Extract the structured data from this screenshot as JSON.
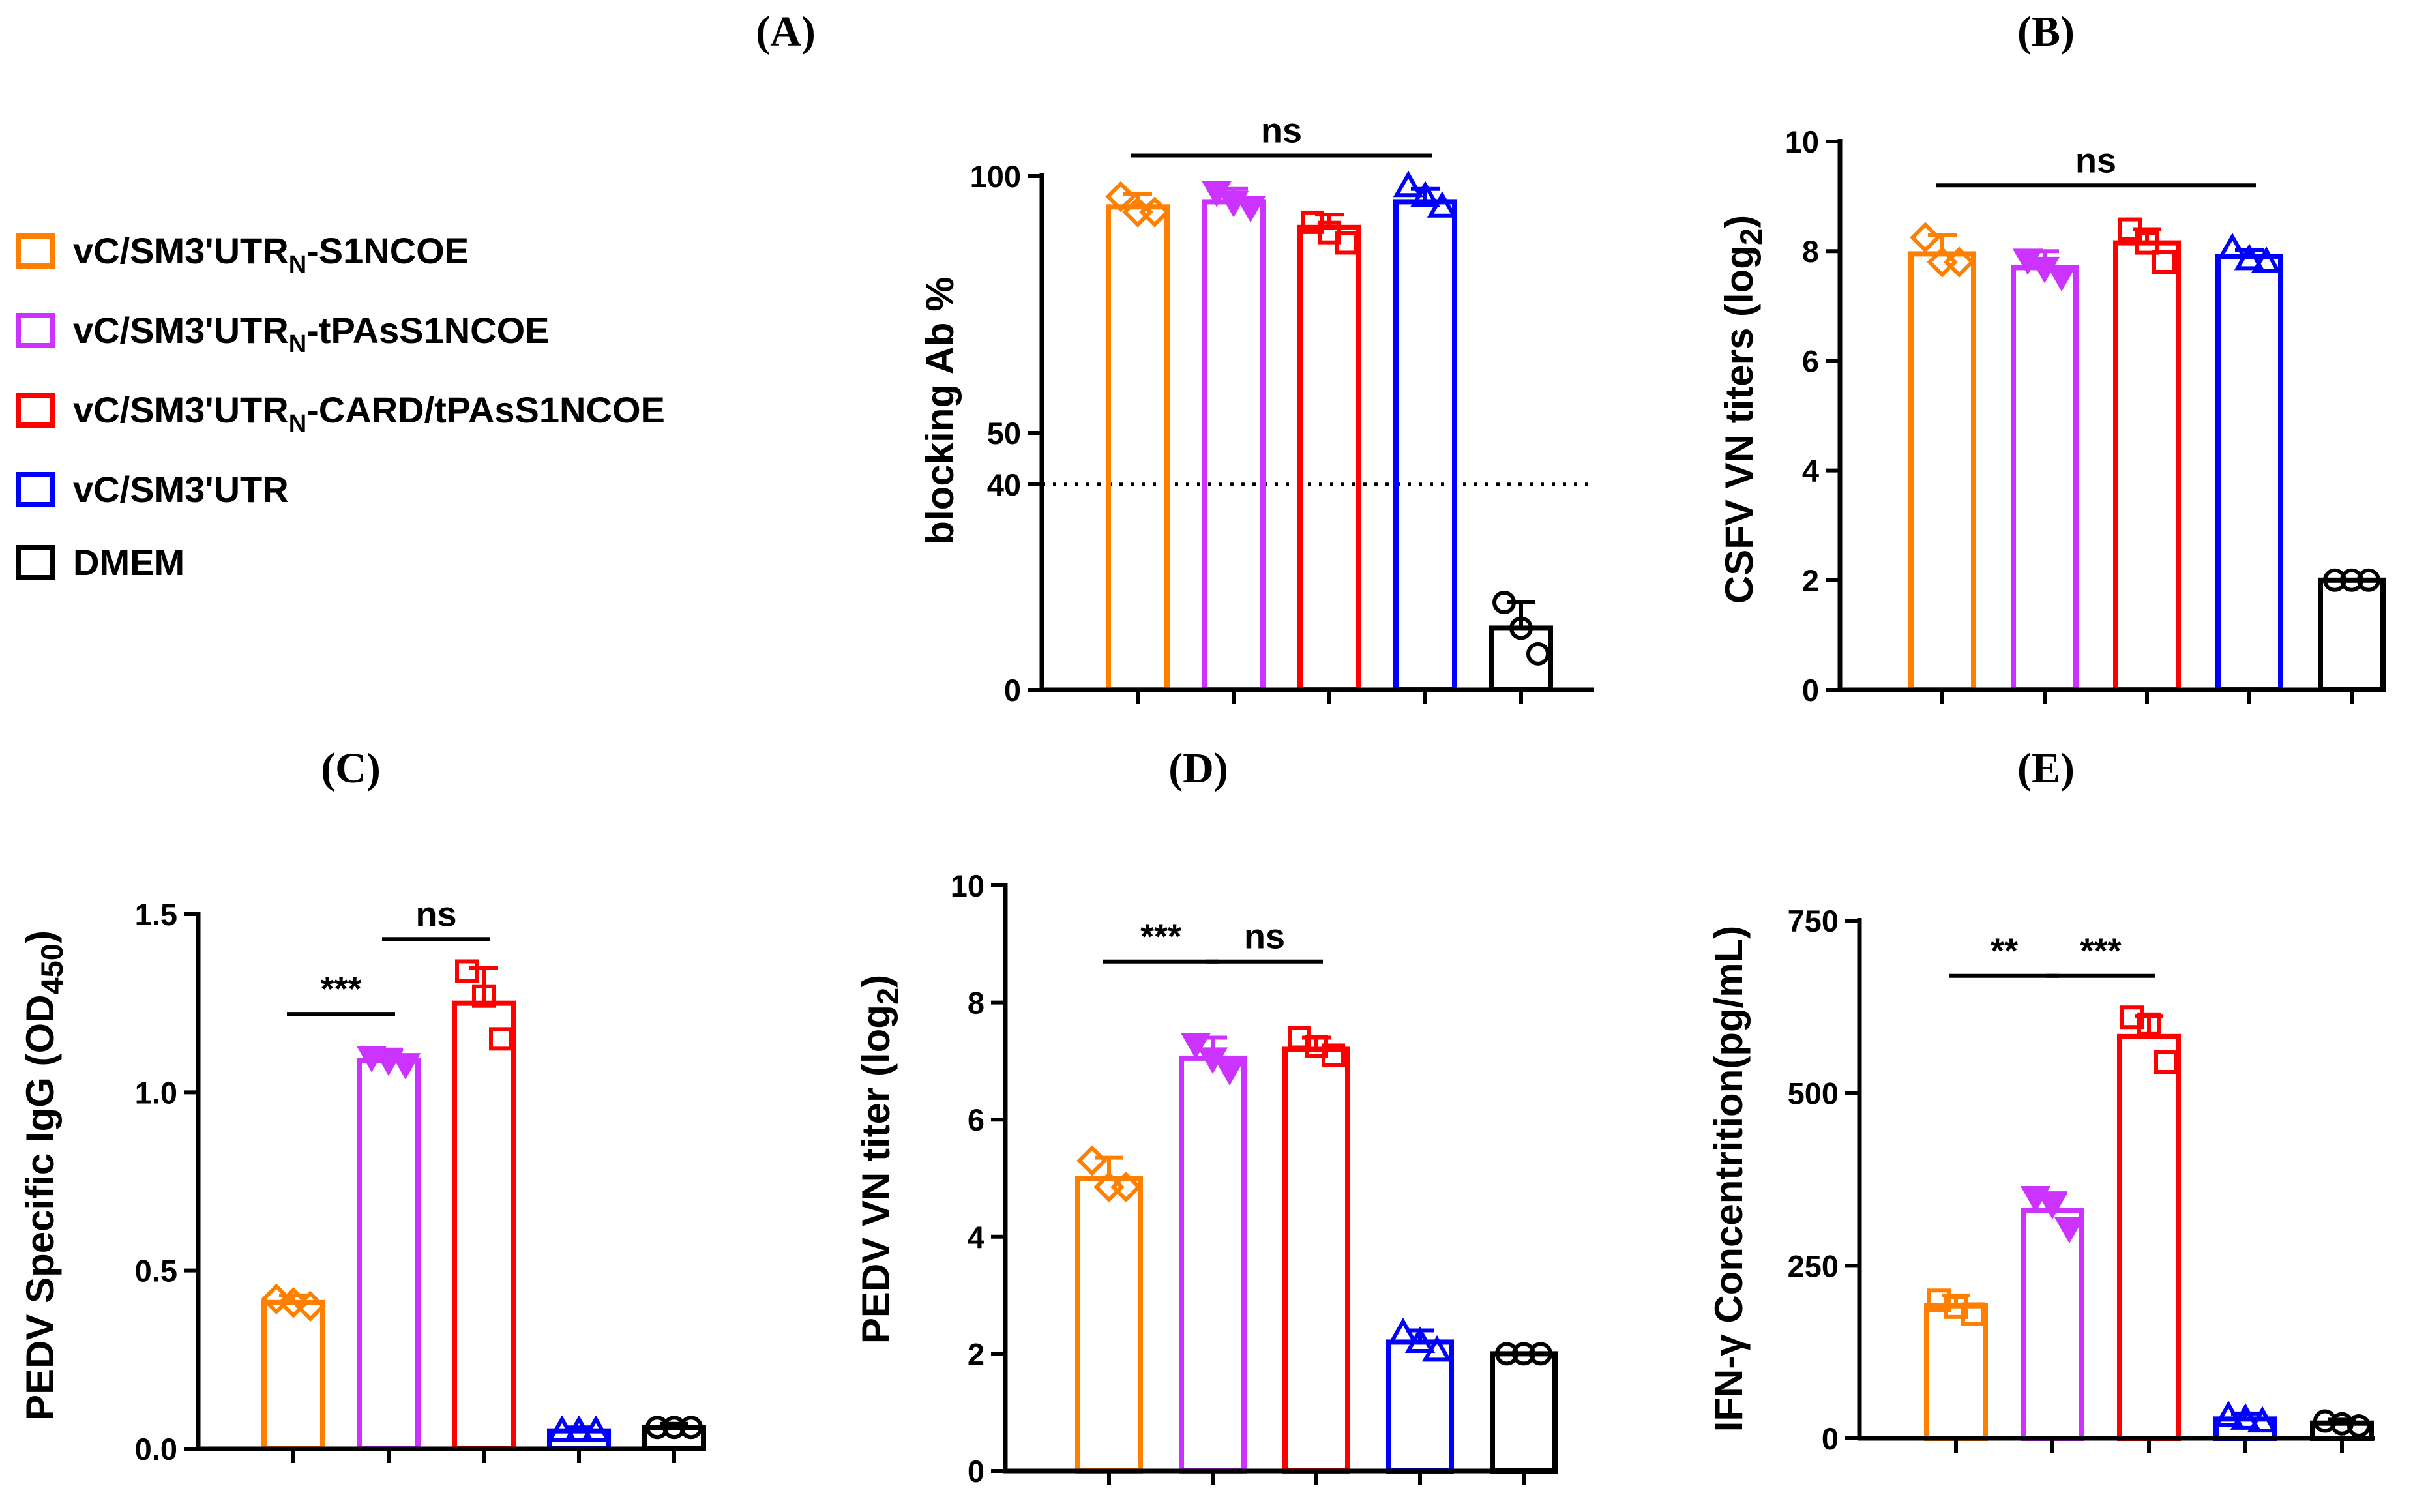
{
  "figure": {
    "legend": [
      {
        "main": "vC/SM3'UTR",
        "sub": "N",
        "rest": "-S1NCOE",
        "color": "#ff8000"
      },
      {
        "main": "vC/SM3'UTR",
        "sub": "N",
        "rest": "-tPAsS1NCOE",
        "color": "#cc33ff"
      },
      {
        "main": "vC/SM3'UTR",
        "sub": "N",
        "rest": "-CARD/tPAsS1NCOE",
        "color": "#ff0000"
      },
      {
        "main": "vC/SM3'UTR",
        "sub": "",
        "rest": "",
        "color": "#0000ff"
      },
      {
        "main": "DMEM",
        "sub": "",
        "rest": "",
        "color": "#000000"
      }
    ]
  },
  "chart_data": [
    {
      "panel": "(A)",
      "type": "bar",
      "categories": [
        "vC/SM3'UTRN-S1NCOE",
        "vC/SM3'UTRN-tPAsS1NCOE",
        "vC/SM3'UTRN-CARD/tPAsS1NCOE",
        "vC/SM3'UTR",
        "DMEM"
      ],
      "values": [
        94,
        95,
        90,
        95,
        12
      ],
      "errors": [
        2.5,
        2.5,
        2.5,
        2.5,
        5
      ],
      "points": [
        [
          96,
          93,
          93
        ],
        [
          97,
          95,
          94
        ],
        [
          91,
          89,
          87
        ],
        [
          98,
          96,
          94
        ],
        [
          17,
          12,
          7
        ]
      ],
      "markers": [
        "diamond",
        "tri-down",
        "square",
        "tri-up",
        "circle"
      ],
      "ylabel_main": "blocking Ab %",
      "ylabel_sub": "",
      "ylabel_end": "",
      "ylim": [
        0,
        100
      ],
      "yticks": [
        0,
        40,
        50,
        100
      ],
      "yticks_text": [
        "0",
        "40",
        "50",
        "100"
      ],
      "threshold": 40,
      "sig": [
        {
          "from": 0,
          "to": 3,
          "label": "ns",
          "y": 104
        }
      ]
    },
    {
      "panel": "(B)",
      "type": "bar",
      "categories": [
        "vC/SM3'UTRN-S1NCOE",
        "vC/SM3'UTRN-tPAsS1NCOE",
        "vC/SM3'UTRN-CARD/tPAsS1NCOE",
        "vC/SM3'UTR",
        "DMEM"
      ],
      "values": [
        7.95,
        7.7,
        8.15,
        7.9,
        2
      ],
      "errors": [
        0.35,
        0.3,
        0.25,
        0.12,
        0
      ],
      "points": [
        [
          8.25,
          7.8,
          7.8
        ],
        [
          7.85,
          7.7,
          7.55
        ],
        [
          8.4,
          8.15,
          7.8
        ],
        [
          8.05,
          7.85,
          7.8
        ],
        [
          2,
          2,
          2
        ]
      ],
      "markers": [
        "diamond",
        "tri-down",
        "square",
        "tri-up",
        "circle"
      ],
      "ylabel_main": "CSFV VN titers (log",
      "ylabel_sub": "2",
      "ylabel_end": ")",
      "ylim": [
        0,
        10
      ],
      "yticks": [
        0,
        2,
        4,
        6,
        8,
        10
      ],
      "yticks_text": [
        "0",
        "2",
        "4",
        "6",
        "8",
        "10"
      ],
      "sig": [
        {
          "from": 0,
          "to": 3,
          "label": "ns",
          "y": 9.2
        }
      ]
    },
    {
      "panel": "(C)",
      "type": "bar",
      "categories": [
        "vC/SM3'UTRN-S1NCOE",
        "vC/SM3'UTRN-tPAsS1NCOE",
        "vC/SM3'UTRN-CARD/tPAsS1NCOE",
        "vC/SM3'UTR",
        "DMEM"
      ],
      "values": [
        0.41,
        1.09,
        1.25,
        0.05,
        0.06
      ],
      "errors": [
        0.02,
        0.03,
        0.1,
        0.01,
        0.01
      ],
      "points": [
        [
          0.42,
          0.41,
          0.4
        ],
        [
          1.1,
          1.09,
          1.08
        ],
        [
          1.34,
          1.27,
          1.15
        ],
        [
          0.05,
          0.05,
          0.05
        ],
        [
          0.06,
          0.06,
          0.06
        ]
      ],
      "markers": [
        "diamond",
        "tri-down",
        "square",
        "tri-up",
        "circle"
      ],
      "ylabel_main": "PEDV Specific IgG (OD",
      "ylabel_sub": "450",
      "ylabel_end": ")",
      "ylim": [
        0,
        1.5
      ],
      "yticks": [
        0,
        0.5,
        1.0,
        1.5
      ],
      "yticks_text": [
        "0.0",
        "0.5",
        "1.0",
        "1.5"
      ],
      "sig": [
        {
          "from": 0,
          "to": 1,
          "label": "***",
          "y": 1.22
        },
        {
          "from": 1,
          "to": 2,
          "label": "ns",
          "y": 1.43
        }
      ]
    },
    {
      "panel": "(D)",
      "type": "bar",
      "categories": [
        "vC/SM3'UTRN-S1NCOE",
        "vC/SM3'UTRN-tPAsS1NCOE",
        "vC/SM3'UTRN-CARD/tPAsS1NCOE",
        "vC/SM3'UTR",
        "DMEM"
      ],
      "values": [
        5.0,
        7.05,
        7.2,
        2.2,
        2.0
      ],
      "errors": [
        0.35,
        0.35,
        0.2,
        0.2,
        0
      ],
      "points": [
        [
          5.3,
          4.85,
          4.85
        ],
        [
          7.3,
          7.05,
          6.85
        ],
        [
          7.4,
          7.25,
          7.1
        ],
        [
          2.35,
          2.2,
          2.05
        ],
        [
          2,
          2,
          2
        ]
      ],
      "markers": [
        "diamond",
        "tri-down",
        "square",
        "tri-up",
        "circle"
      ],
      "ylabel_main": "PEDV VN titer (log",
      "ylabel_sub": "2",
      "ylabel_end": ")",
      "ylim": [
        0,
        10
      ],
      "yticks": [
        0,
        2,
        4,
        6,
        8,
        10
      ],
      "yticks_text": [
        "0",
        "2",
        "4",
        "6",
        "8",
        "10"
      ],
      "sig": [
        {
          "from": 0,
          "to": 1,
          "label": "***",
          "y": 8.7
        },
        {
          "from": 1,
          "to": 2,
          "label": "ns",
          "y": 8.7
        }
      ]
    },
    {
      "panel": "(E)",
      "type": "bar",
      "categories": [
        "vC/SM3'UTRN-S1NCOE",
        "vC/SM3'UTRN-tPAsS1NCOE",
        "vC/SM3'UTRN-CARD/tPAsS1NCOE",
        "vC/SM3'UTR",
        "DMEM"
      ],
      "values": [
        192,
        330,
        582,
        28,
        22
      ],
      "errors": [
        15,
        25,
        30,
        8,
        5
      ],
      "points": [
        [
          200,
          190,
          180
        ],
        [
          350,
          340,
          305
        ],
        [
          610,
          600,
          545
        ],
        [
          32,
          28,
          24
        ],
        [
          25,
          21,
          18
        ]
      ],
      "markers": [
        "square",
        "tri-down",
        "square",
        "tri-up",
        "circle"
      ],
      "ylabel_main": "IFN-γ Concentrition(pg/mL)",
      "ylabel_sub": "",
      "ylabel_end": "",
      "ylim": [
        0,
        750
      ],
      "yticks": [
        0,
        250,
        500,
        750
      ],
      "yticks_text": [
        "0",
        "250",
        "500",
        "750"
      ],
      "sig": [
        {
          "from": 0,
          "to": 1,
          "label": "**",
          "y": 670
        },
        {
          "from": 1,
          "to": 2,
          "label": "***",
          "y": 670
        }
      ]
    }
  ]
}
